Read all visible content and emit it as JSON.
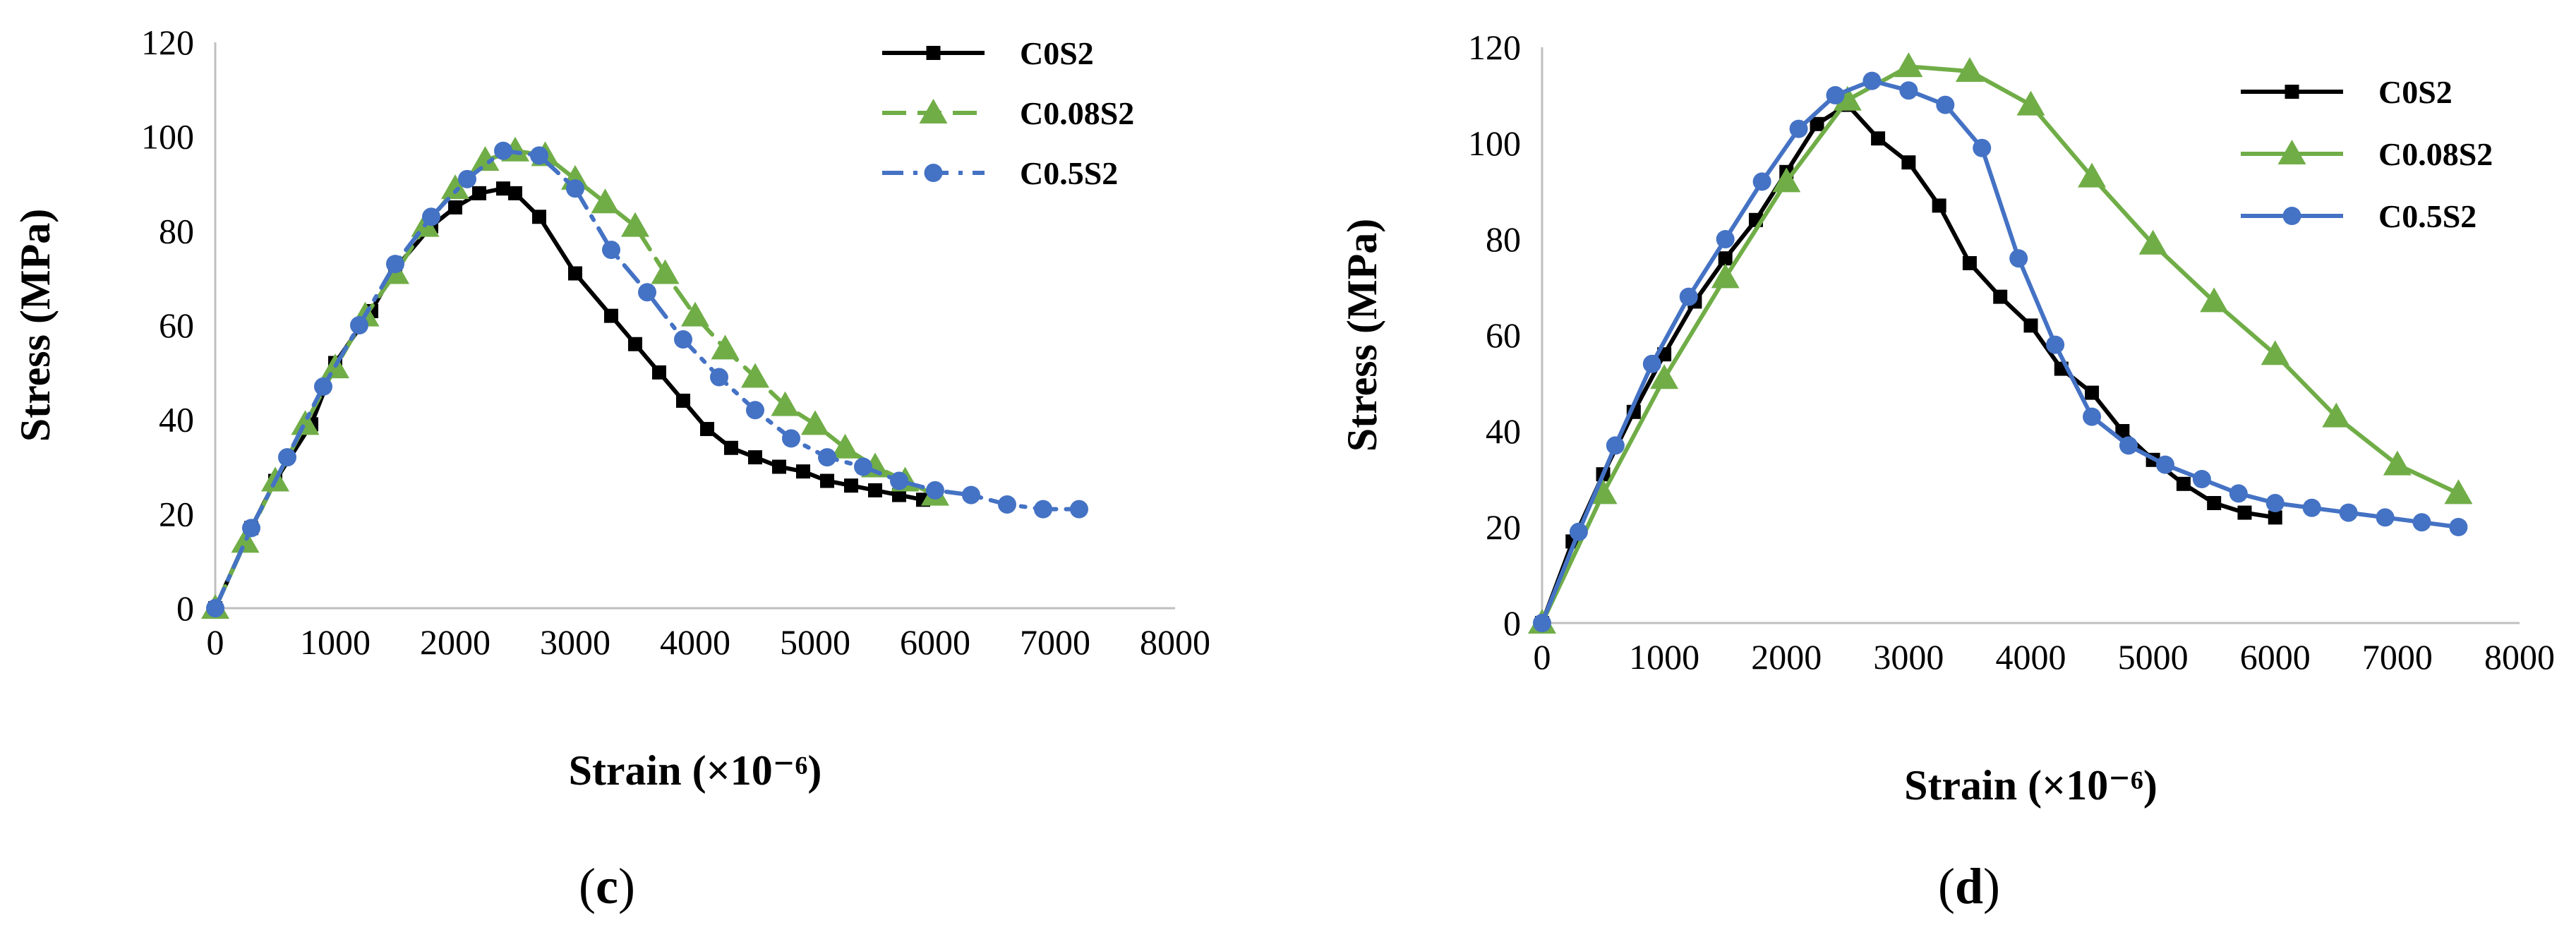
{
  "chart_data": [
    {
      "type": "line",
      "panel_label": "(c)",
      "xlabel": "Strain (×10⁻⁶)",
      "ylabel": "Stress (MPa)",
      "xlim": [
        0,
        8000
      ],
      "ylim": [
        0,
        120
      ],
      "x_ticks": [
        0,
        1000,
        2000,
        3000,
        4000,
        5000,
        6000,
        7000,
        8000
      ],
      "y_ticks": [
        0,
        20,
        40,
        60,
        80,
        100,
        120
      ],
      "grid": false,
      "legend_position": "top-right",
      "series": [
        {
          "name": "C0S2",
          "color": "#000000",
          "marker": "square",
          "dash": "solid",
          "x": [
            0,
            300,
            500,
            800,
            1000,
            1300,
            1500,
            1800,
            2000,
            2200,
            2400,
            2500,
            2700,
            3000,
            3300,
            3500,
            3700,
            3900,
            4100,
            4300,
            4500,
            4700,
            4900,
            5100,
            5300,
            5500,
            5700,
            5900
          ],
          "y": [
            0,
            17,
            27,
            39,
            52,
            63,
            72,
            81,
            85,
            88,
            89,
            88,
            83,
            71,
            62,
            56,
            50,
            44,
            38,
            34,
            32,
            30,
            29,
            27,
            26,
            25,
            24,
            23
          ]
        },
        {
          "name": "C0.08S2",
          "color": "#70AD47",
          "marker": "triangle",
          "dash": "dash",
          "x": [
            0,
            250,
            500,
            750,
            1000,
            1250,
            1500,
            1750,
            2000,
            2250,
            2500,
            2750,
            3000,
            3250,
            3500,
            3750,
            4000,
            4250,
            4500,
            4750,
            5000,
            5250,
            5500,
            5750,
            6000
          ],
          "y": [
            0,
            14,
            27,
            39,
            51,
            62,
            71,
            81,
            89,
            95,
            97,
            96,
            91,
            86,
            81,
            71,
            62,
            55,
            49,
            43,
            39,
            34,
            30,
            27,
            24
          ]
        },
        {
          "name": "C0.5S2",
          "color": "#4472C4",
          "marker": "circle",
          "dash": "dashdot",
          "x": [
            0,
            300,
            600,
            900,
            1200,
            1500,
            1800,
            2100,
            2400,
            2700,
            3000,
            3300,
            3600,
            3900,
            4200,
            4500,
            4800,
            5100,
            5400,
            5700,
            6000,
            6300,
            6600,
            6900,
            7200
          ],
          "y": [
            0,
            17,
            32,
            47,
            60,
            73,
            83,
            91,
            97,
            96,
            89,
            76,
            67,
            57,
            49,
            42,
            36,
            32,
            30,
            27,
            25,
            24,
            22,
            21,
            21
          ]
        }
      ]
    },
    {
      "type": "line",
      "panel_label": "(d)",
      "xlabel": "Strain (×10⁻⁶)",
      "ylabel": "Stress (MPa)",
      "xlim": [
        0,
        8000
      ],
      "ylim": [
        0,
        120
      ],
      "x_ticks": [
        0,
        1000,
        2000,
        3000,
        4000,
        5000,
        6000,
        7000,
        8000
      ],
      "y_ticks": [
        0,
        20,
        40,
        60,
        80,
        100,
        120
      ],
      "grid": false,
      "legend_position": "top-right",
      "series": [
        {
          "name": "C0S2",
          "color": "#000000",
          "marker": "square",
          "dash": "solid",
          "x": [
            0,
            250,
            500,
            750,
            1000,
            1250,
            1500,
            1750,
            2000,
            2250,
            2500,
            2750,
            3000,
            3250,
            3500,
            3750,
            4000,
            4250,
            4500,
            4750,
            5000,
            5250,
            5500,
            5750,
            6000
          ],
          "y": [
            0,
            17,
            31,
            44,
            56,
            67,
            76,
            84,
            94,
            104,
            108,
            101,
            96,
            87,
            75,
            68,
            62,
            53,
            48,
            40,
            34,
            29,
            25,
            23,
            22
          ]
        },
        {
          "name": "C0.08S2",
          "color": "#70AD47",
          "marker": "triangle",
          "dash": "solid",
          "x": [
            0,
            500,
            1000,
            1500,
            2000,
            2500,
            3000,
            3500,
            4000,
            4500,
            5000,
            5500,
            6000,
            6500,
            7000,
            7500
          ],
          "y": [
            0,
            27,
            51,
            72,
            92,
            109,
            116,
            115,
            108,
            93,
            79,
            67,
            56,
            43,
            33,
            27
          ]
        },
        {
          "name": "C0.5S2",
          "color": "#4472C4",
          "marker": "circle",
          "dash": "solid",
          "x": [
            0,
            300,
            600,
            900,
            1200,
            1500,
            1800,
            2100,
            2400,
            2700,
            3000,
            3300,
            3600,
            3900,
            4200,
            4500,
            4800,
            5100,
            5400,
            5700,
            6000,
            6300,
            6600,
            6900,
            7200,
            7500
          ],
          "y": [
            0,
            19,
            37,
            54,
            68,
            80,
            92,
            103,
            110,
            113,
            111,
            108,
            99,
            76,
            58,
            43,
            37,
            33,
            30,
            27,
            25,
            24,
            23,
            22,
            21,
            20
          ]
        }
      ]
    }
  ]
}
